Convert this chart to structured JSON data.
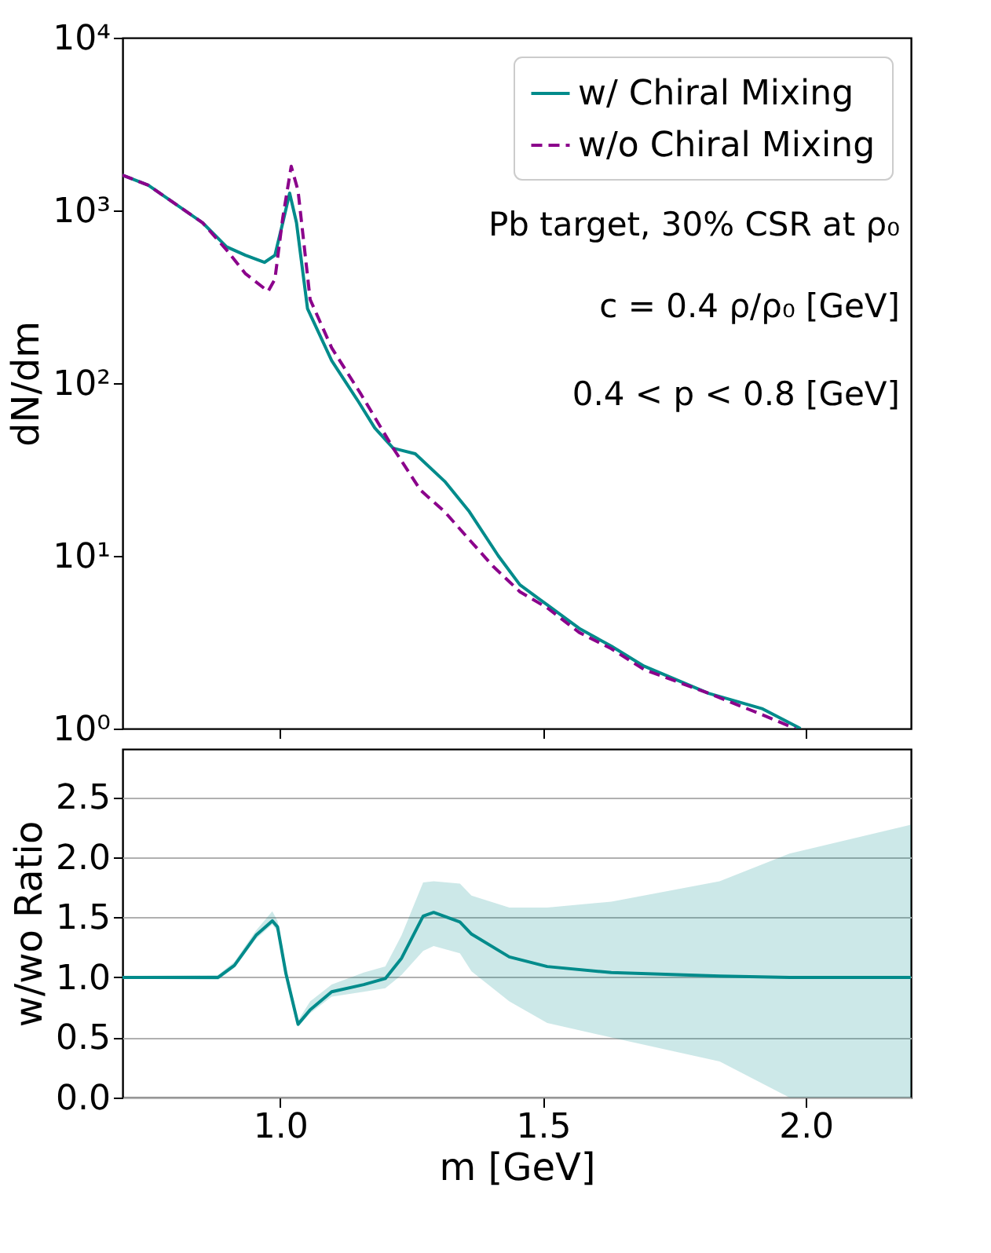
{
  "chart_data": [
    {
      "type": "line",
      "ylabel": "dN/dm",
      "log": true,
      "xlim": [
        0.7,
        2.2
      ],
      "xticks": [
        {
          "value": 1,
          "label": null
        },
        {
          "value": 1.5,
          "label": null
        },
        {
          "value": 2,
          "label": null
        }
      ],
      "ylim": [
        1,
        10000
      ],
      "yticks": [
        {
          "value": 1,
          "label": "10⁰"
        },
        {
          "value": 10,
          "label": "10¹"
        },
        {
          "value": 100,
          "label": "10²"
        },
        {
          "value": 1000,
          "label": "10³"
        },
        {
          "value": 10000,
          "label": "10⁴"
        }
      ],
      "tick_labels": "y",
      "legend": "top right",
      "annotations": [
        "Pb target, 30% CSR at ρ₀",
        "c = 0.4 ρ/ρ₀ [GeV]",
        "0.4 < p < 0.8 [GeV]"
      ],
      "series": [
        {
          "name": "w/ Chiral Mixing",
          "color": "#008b8b",
          "line_style": "solid",
          "x": [
            0.7,
            0.749,
            0.852,
            0.898,
            0.934,
            0.97,
            0.99,
            1.005,
            1.018,
            1.031,
            1.052,
            1.098,
            1.149,
            1.18,
            1.215,
            1.257,
            1.313,
            1.36,
            1.415,
            1.456,
            1.508,
            1.569,
            1.63,
            1.692,
            1.815,
            1.918,
            1.99
          ],
          "values": [
            1600,
            1400,
            850,
            615,
            550,
            500,
            550,
            850,
            1260,
            850,
            270,
            135,
            78,
            55,
            42,
            39,
            27,
            18,
            10,
            6.8,
            5.2,
            3.8,
            3.0,
            2.3,
            1.6,
            1.3,
            1.0
          ]
        },
        {
          "name": "w/o Chiral Mixing",
          "color": "#8b008b",
          "line_style": "dashed",
          "x": [
            0.7,
            0.749,
            0.852,
            0.898,
            0.934,
            0.977,
            0.99,
            1.005,
            1.021,
            1.034,
            1.057,
            1.098,
            1.154,
            1.215,
            1.267,
            1.313,
            1.354,
            1.405,
            1.456,
            1.508,
            1.569,
            1.63,
            1.692,
            1.815,
            1.918,
            1.98
          ],
          "values": [
            1600,
            1400,
            850,
            590,
            430,
            340,
            400,
            910,
            1800,
            1300,
            305,
            160,
            86,
            42,
            24,
            18,
            13,
            8.7,
            6.2,
            5.0,
            3.6,
            2.9,
            2.2,
            1.6,
            1.2,
            1.0
          ]
        }
      ]
    },
    {
      "type": "line",
      "xlabel": "m [GeV]",
      "ylabel": "w/wo Ratio",
      "grid": "y",
      "xlim": [
        0.7,
        2.2
      ],
      "xticks": [
        {
          "value": 1,
          "label": "1.0"
        },
        1.5,
        {
          "value": 2,
          "label": "2.0"
        }
      ],
      "ylim": [
        0,
        2.9
      ],
      "yticks": [
        {
          "value": 0,
          "label": "0.0"
        },
        0.5,
        {
          "value": 1,
          "label": "1.0"
        },
        1.5,
        {
          "value": 2,
          "label": "2.0"
        },
        2.5
      ],
      "series": [
        {
          "color": "#008b8b",
          "line_style": "solid",
          "x": [
            0.7,
            0.882,
            0.913,
            0.954,
            0.985,
            0.995,
            1.011,
            1.034,
            1.057,
            1.098,
            1.159,
            1.2,
            1.231,
            1.272,
            1.292,
            1.342,
            1.364,
            1.436,
            1.508,
            1.63,
            1.836,
            1.969,
            2.2
          ],
          "values": [
            1.0,
            1.0,
            1.1,
            1.35,
            1.47,
            1.42,
            1.03,
            0.61,
            0.73,
            0.88,
            0.94,
            0.99,
            1.16,
            1.51,
            1.54,
            1.46,
            1.36,
            1.17,
            1.09,
            1.04,
            1.01,
            1.0,
            1.0
          ],
          "lower": [
            0.99,
            0.98,
            1.08,
            1.32,
            1.44,
            1.38,
            1.0,
            0.59,
            0.7,
            0.84,
            0.88,
            0.91,
            1.02,
            1.22,
            1.26,
            1.2,
            1.05,
            0.8,
            0.62,
            0.5,
            0.3,
            0,
            0
          ],
          "upper": [
            1.01,
            1.02,
            1.13,
            1.39,
            1.55,
            1.47,
            1.06,
            0.64,
            0.8,
            0.94,
            1.04,
            1.09,
            1.35,
            1.79,
            1.8,
            1.78,
            1.68,
            1.58,
            1.58,
            1.63,
            1.8,
            2.03,
            2.27
          ]
        }
      ]
    }
  ]
}
